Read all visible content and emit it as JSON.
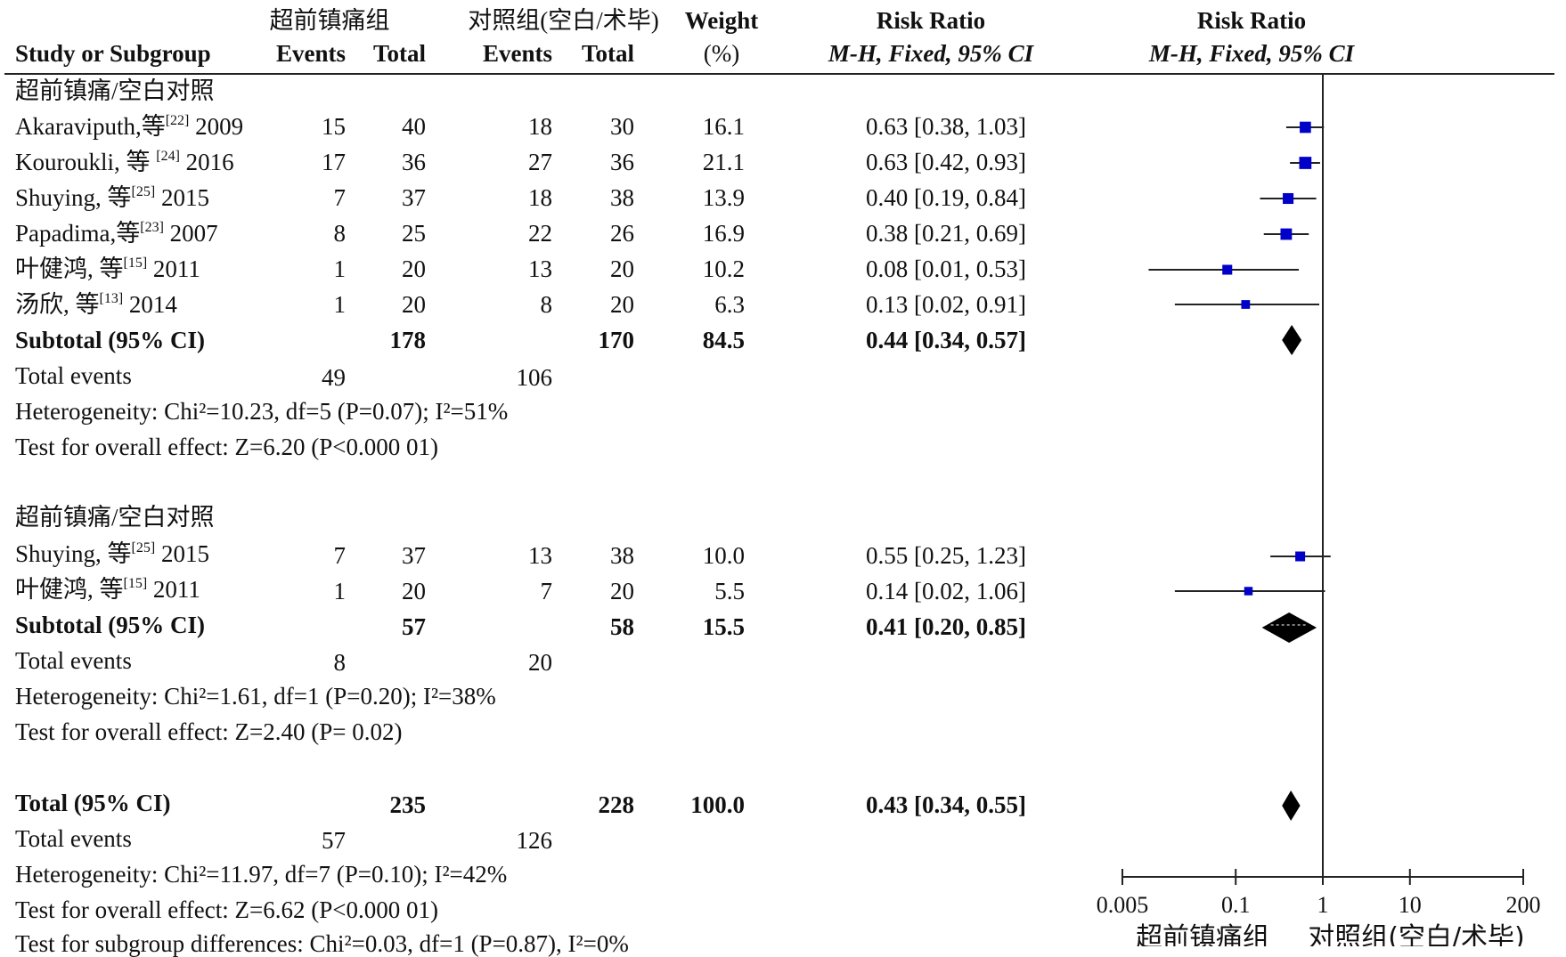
{
  "header": {
    "group1": "超前镇痛组",
    "group2": "对照组(空白/术毕)",
    "study_col": "Study or Subgroup",
    "events": "Events",
    "total": "Total",
    "weight_l1": "Weight",
    "weight_l2": "(%)",
    "rr_title": "Risk Ratio",
    "rr_method": "M-H, Fixed, 95% CI"
  },
  "subgroups": [
    {
      "title": "超前镇痛/空白对照",
      "studies": [
        {
          "name": "Akaraviputh,等",
          "ref": "[22]",
          "year": "2009",
          "e1": "15",
          "t1": "40",
          "e2": "18",
          "t2": "30",
          "weight": "16.1",
          "ci": "0.63 [0.38, 1.03]"
        },
        {
          "name": "Kouroukli, 等 ",
          "ref": "[24]",
          "year": "2016",
          "e1": "17",
          "t1": "36",
          "e2": "27",
          "t2": "36",
          "weight": "21.1",
          "ci": "0.63 [0.42, 0.93]"
        },
        {
          "name": "Shuying, 等",
          "ref": "[25]",
          "year": "2015",
          "e1": "7",
          "t1": "37",
          "e2": "18",
          "t2": "38",
          "weight": "13.9",
          "ci": "0.40 [0.19, 0.84]"
        },
        {
          "name": "Papadima,等",
          "ref": "[23]",
          "year": "2007",
          "e1": "8",
          "t1": "25",
          "e2": "22",
          "t2": "26",
          "weight": "16.9",
          "ci": "0.38 [0.21, 0.69]"
        },
        {
          "name": "叶健鸿, 等",
          "ref": "[15]",
          "year": "2011",
          "e1": "1",
          "t1": "20",
          "e2": "13",
          "t2": "20",
          "weight": "10.2",
          "ci": "0.08 [0.01, 0.53]"
        },
        {
          "name": "汤欣, 等",
          "ref": "[13]",
          "year": "2014",
          "e1": "1",
          "t1": "20",
          "e2": "8",
          "t2": "20",
          "weight": "6.3",
          "ci": "0.13 [0.02, 0.91]"
        }
      ],
      "subtotal": {
        "label": "Subtotal (95% CI)",
        "t1": "178",
        "t2": "170",
        "weight": "84.5",
        "ci": "0.44 [0.34, 0.57]"
      },
      "events_label": "Total events",
      "events1": "49",
      "events2": "106",
      "heterogeneity": "Heterogeneity: Chi²=10.23, df=5 (P=0.07); I²=51%",
      "overall": "Test for overall effect: Z=6.20 (P<0.000 01)"
    },
    {
      "title": "超前镇痛/空白对照",
      "studies": [
        {
          "name": "Shuying, 等",
          "ref": "[25]",
          "year": "2015",
          "e1": "7",
          "t1": "37",
          "e2": "13",
          "t2": "38",
          "weight": "10.0",
          "ci": "0.55 [0.25, 1.23]"
        },
        {
          "name": "叶健鸿, 等",
          "ref": "[15]",
          "year": "2011",
          "e1": "1",
          "t1": "20",
          "e2": "7",
          "t2": "20",
          "weight": "5.5",
          "ci": "0.14 [0.02, 1.06]"
        }
      ],
      "subtotal": {
        "label": "Subtotal (95% CI)",
        "t1": "57",
        "t2": "58",
        "weight": "15.5",
        "ci": "0.41 [0.20, 0.85]"
      },
      "events_label": "Total events",
      "events1": "8",
      "events2": "20",
      "heterogeneity": "Heterogeneity: Chi²=1.61, df=1 (P=0.20); I²=38%",
      "overall": "Test for overall effect: Z=2.40 (P= 0.02)"
    }
  ],
  "total": {
    "label": "Total (95% CI)",
    "t1": "235",
    "t2": "228",
    "weight": "100.0",
    "ci": "0.43 [0.34, 0.55]",
    "events_label": "Total events",
    "events1": "57",
    "events2": "126",
    "heterogeneity": "Heterogeneity: Chi²=11.97, df=7 (P=0.10); I²=42%",
    "overall": "Test for overall effect: Z=6.62 (P<0.000 01)",
    "subgroup_diff": "Test for subgroup differences: Chi²=0.03, df=1 (P=0.87), I²=0%"
  },
  "axis": {
    "labels": [
      "0.005",
      "0.1",
      "1",
      "10",
      "200"
    ],
    "favours_left": "超前镇痛组",
    "favours_right": "对照组(空白/术毕)"
  },
  "chart_data": {
    "type": "forest",
    "scale": "log",
    "xlim": [
      0.005,
      200
    ],
    "xticks": [
      0.005,
      0.1,
      1,
      10,
      200
    ],
    "reference_line": 1,
    "marker_color": "#0000c8",
    "series": [
      {
        "name": "Akaraviputh,等 2009",
        "rr": 0.63,
        "lo": 0.38,
        "hi": 1.03,
        "weight": 16.1
      },
      {
        "name": "Kouroukli, 等 2016",
        "rr": 0.63,
        "lo": 0.42,
        "hi": 0.93,
        "weight": 21.1
      },
      {
        "name": "Shuying, 等 2015",
        "rr": 0.4,
        "lo": 0.19,
        "hi": 0.84,
        "weight": 13.9
      },
      {
        "name": "Papadima,等 2007",
        "rr": 0.38,
        "lo": 0.21,
        "hi": 0.69,
        "weight": 16.9
      },
      {
        "name": "叶健鸿, 等 2011",
        "rr": 0.08,
        "lo": 0.01,
        "hi": 0.53,
        "weight": 10.2
      },
      {
        "name": "汤欣, 等 2014",
        "rr": 0.13,
        "lo": 0.02,
        "hi": 0.91,
        "weight": 6.3
      },
      {
        "name": "Shuying, 等 2015",
        "rr": 0.55,
        "lo": 0.25,
        "hi": 1.23,
        "weight": 10.0
      },
      {
        "name": "叶健鸿, 等 2011",
        "rr": 0.14,
        "lo": 0.02,
        "hi": 1.06,
        "weight": 5.5
      }
    ],
    "diamonds": [
      {
        "name": "Subtotal (95% CI)",
        "rr": 0.44,
        "lo": 0.34,
        "hi": 0.57
      },
      {
        "name": "Subtotal (95% CI)",
        "rr": 0.41,
        "lo": 0.2,
        "hi": 0.85
      },
      {
        "name": "Total (95% CI)",
        "rr": 0.43,
        "lo": 0.34,
        "hi": 0.55
      }
    ]
  }
}
